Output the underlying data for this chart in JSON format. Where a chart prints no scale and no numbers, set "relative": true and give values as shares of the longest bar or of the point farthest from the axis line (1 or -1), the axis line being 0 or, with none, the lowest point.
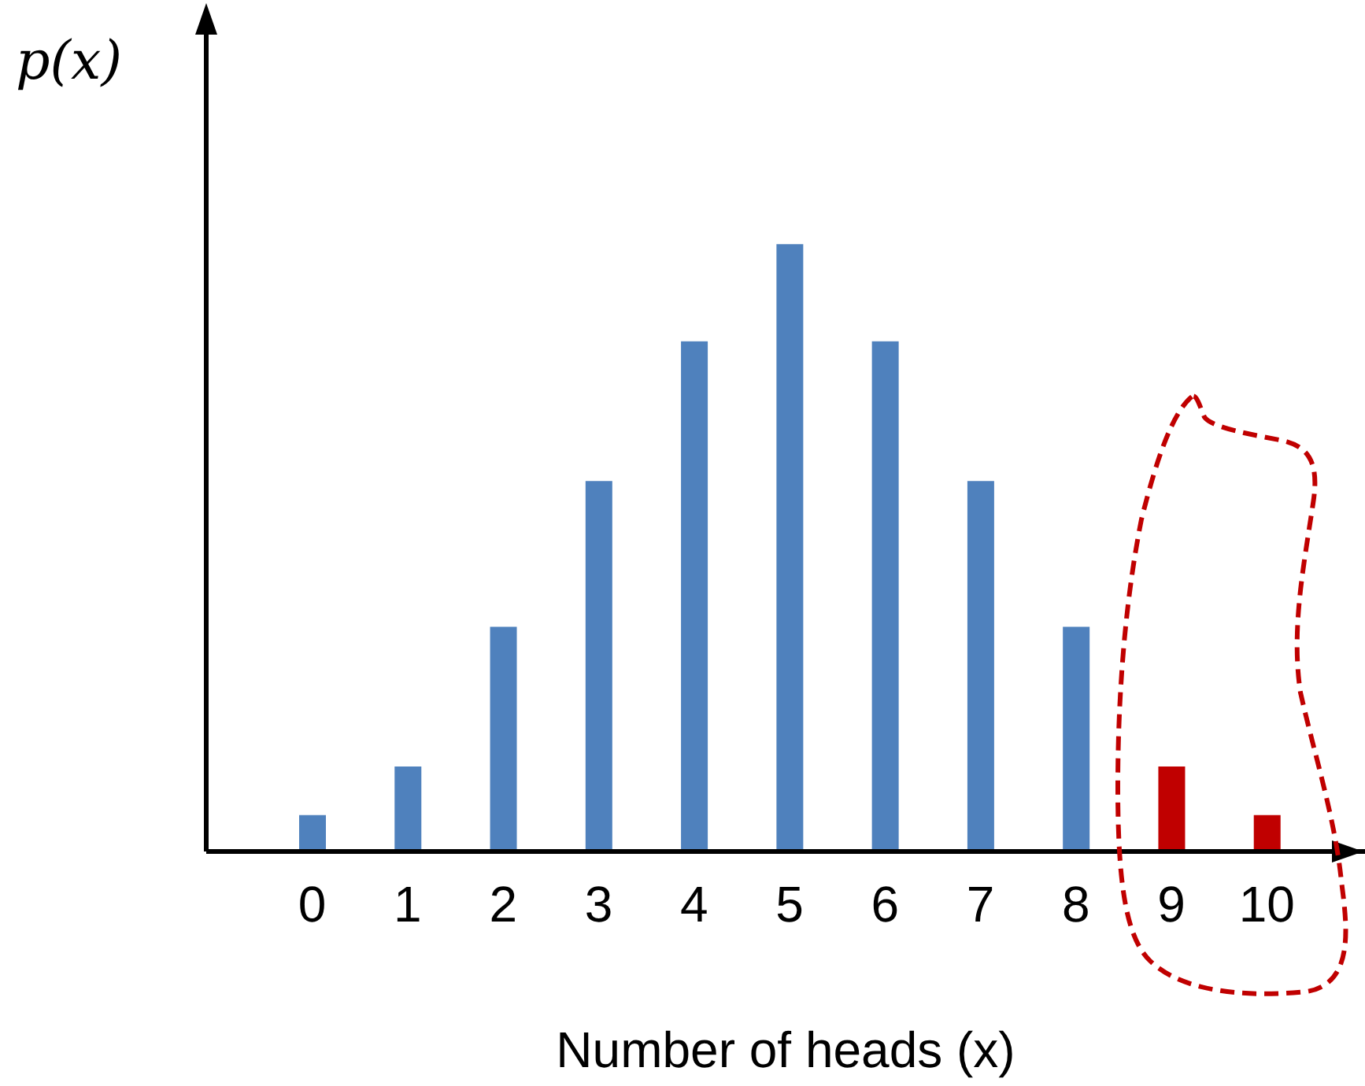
{
  "chart_data": {
    "type": "bar",
    "relative": true,
    "xlabel": "Number of heads (x)",
    "ylabel": "p(x)",
    "categories": [
      "0",
      "1",
      "2",
      "3",
      "4",
      "5",
      "6",
      "7",
      "8",
      "9",
      "10"
    ],
    "values": [
      0.06,
      0.14,
      0.37,
      0.61,
      0.84,
      1,
      0.84,
      0.61,
      0.37,
      0.14,
      0.06
    ],
    "colors": [
      "#4f81bd",
      "#4f81bd",
      "#4f81bd",
      "#4f81bd",
      "#4f81bd",
      "#4f81bd",
      "#4f81bd",
      "#4f81bd",
      "#4f81bd",
      "#c00000",
      "#c00000"
    ],
    "grid": false,
    "legend": false
  }
}
